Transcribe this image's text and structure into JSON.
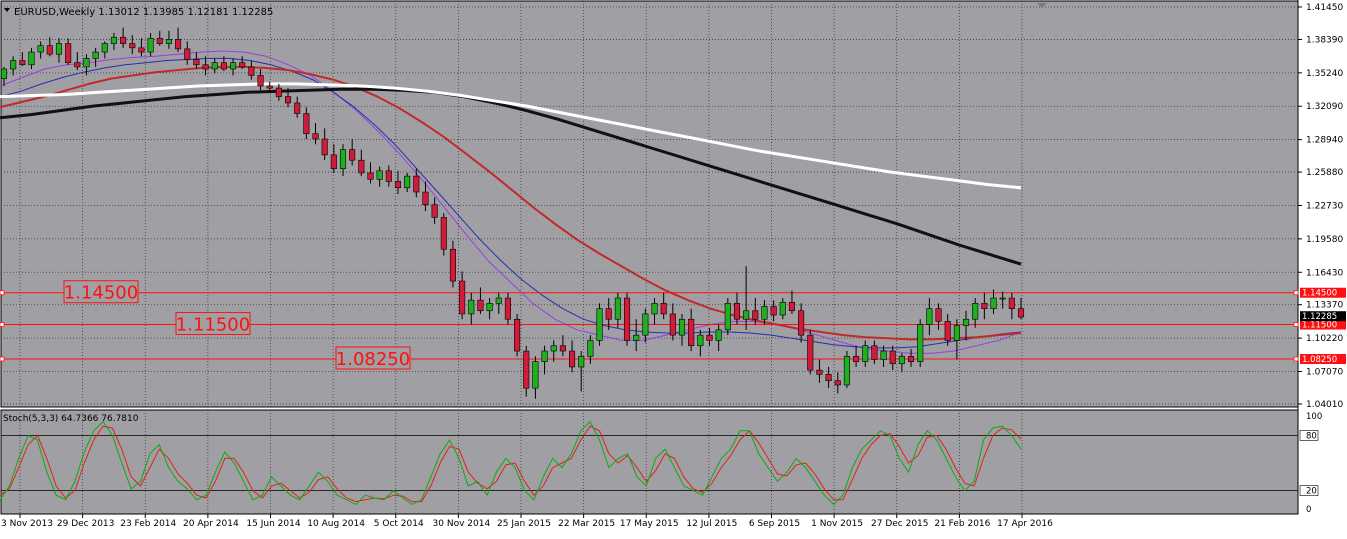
{
  "chart_data": [
    {
      "type": "candlestick",
      "symbol_info": "EURUSD,Weekly  1.13012 1.13985 1.12181 1.12285",
      "ylim": [
        1.041,
        1.4145
      ],
      "y_ticks": [
        "1.41450",
        "1.38390",
        "1.35240",
        "1.32090",
        "1.28940",
        "1.25880",
        "1.22730",
        "1.19580",
        "1.16430",
        "1.13370",
        "1.10220",
        "1.07070",
        "1.04010"
      ],
      "x_ticks": [
        "3 Nov 2013",
        "29 Dec 2013",
        "23 Feb 2014",
        "20 Apr 2014",
        "15 Jun 2014",
        "10 Aug 2014",
        "5 Oct 2014",
        "30 Nov 2014",
        "25 Jan 2015",
        "22 Mar 2015",
        "17 May 2015",
        "12 Jul 2015",
        "6 Sep 2015",
        "1 Nov 2015",
        "27 Dec 2015",
        "21 Feb 2016",
        "17 Apr 2016"
      ],
      "current_price": "1.12285",
      "levels": [
        {
          "value": 1.145,
          "label": "1.14500",
          "axis_label": "1.14500"
        },
        {
          "value": 1.115,
          "label": "1.11500",
          "axis_label": "1.11500"
        },
        {
          "value": 1.0825,
          "label": "1.08250",
          "axis_label": "1.08250"
        }
      ],
      "moving_averages": [
        {
          "color": "#9a3de0",
          "values": [
            1.34,
            1.348,
            1.356,
            1.36,
            1.362,
            1.365,
            1.367,
            1.368,
            1.37,
            1.372,
            1.373,
            1.372,
            1.368,
            1.36,
            1.35,
            1.335,
            1.318,
            1.298,
            1.276,
            1.252,
            1.226,
            1.2,
            1.175,
            1.155,
            1.135,
            1.12,
            1.11,
            1.105,
            1.1,
            1.1,
            1.105,
            1.11,
            1.115,
            1.118,
            1.118,
            1.115,
            1.11,
            1.104,
            1.098,
            1.092,
            1.09,
            1.088,
            1.088,
            1.09,
            1.095,
            1.1,
            1.108
          ]
        },
        {
          "color": "#2b2bb0",
          "values": [
            1.33,
            1.335,
            1.342,
            1.348,
            1.353,
            1.357,
            1.36,
            1.362,
            1.364,
            1.365,
            1.366,
            1.366,
            1.364,
            1.36,
            1.354,
            1.346,
            1.334,
            1.32,
            1.303,
            1.284,
            1.262,
            1.24,
            1.218,
            1.196,
            1.176,
            1.158,
            1.143,
            1.13,
            1.12,
            1.114,
            1.11,
            1.108,
            1.107,
            1.107,
            1.108,
            1.108,
            1.107,
            1.105,
            1.102,
            1.099,
            1.096,
            1.094,
            1.093,
            1.093,
            1.094,
            1.097,
            1.1,
            1.103,
            1.106,
            1.108
          ]
        },
        {
          "color": "#c22a2a",
          "values": [
            1.32,
            1.325,
            1.33,
            1.336,
            1.342,
            1.347,
            1.35,
            1.353,
            1.355,
            1.357,
            1.358,
            1.358,
            1.357,
            1.355,
            1.351,
            1.346,
            1.339,
            1.33,
            1.319,
            1.306,
            1.292,
            1.276,
            1.26,
            1.243,
            1.226,
            1.21,
            1.195,
            1.182,
            1.17,
            1.158,
            1.147,
            1.138,
            1.13,
            1.124,
            1.119,
            1.115,
            1.111,
            1.108,
            1.105,
            1.103,
            1.102,
            1.101,
            1.101,
            1.102,
            1.103,
            1.105,
            1.107
          ]
        },
        {
          "color": "#111111",
          "values": [
            1.31,
            1.313,
            1.317,
            1.321,
            1.324,
            1.327,
            1.33,
            1.332,
            1.334,
            1.335,
            1.336,
            1.337,
            1.337,
            1.336,
            1.334,
            1.33,
            1.324,
            1.317,
            1.309,
            1.3,
            1.291,
            1.282,
            1.273,
            1.264,
            1.255,
            1.246,
            1.237,
            1.228,
            1.219,
            1.21,
            1.2,
            1.19,
            1.181,
            1.172
          ]
        },
        {
          "color": "#ffffff",
          "values": [
            1.33,
            1.331,
            1.332,
            1.334,
            1.336,
            1.338,
            1.34,
            1.341,
            1.342,
            1.342,
            1.341,
            1.34,
            1.338,
            1.335,
            1.331,
            1.326,
            1.321,
            1.315,
            1.309,
            1.303,
            1.297,
            1.291,
            1.285,
            1.279,
            1.274,
            1.269,
            1.264,
            1.259,
            1.255,
            1.251,
            1.247,
            1.244
          ]
        }
      ],
      "candles": [
        [
          1.347,
          1.358,
          1.34,
          1.356
        ],
        [
          1.356,
          1.368,
          1.35,
          1.364
        ],
        [
          1.364,
          1.372,
          1.359,
          1.36
        ],
        [
          1.36,
          1.376,
          1.356,
          1.372
        ],
        [
          1.372,
          1.382,
          1.366,
          1.378
        ],
        [
          1.378,
          1.386,
          1.368,
          1.37
        ],
        [
          1.37,
          1.385,
          1.362,
          1.38
        ],
        [
          1.38,
          1.385,
          1.36,
          1.362
        ],
        [
          1.362,
          1.372,
          1.355,
          1.358
        ],
        [
          1.358,
          1.37,
          1.35,
          1.366
        ],
        [
          1.366,
          1.376,
          1.358,
          1.372
        ],
        [
          1.372,
          1.382,
          1.366,
          1.38
        ],
        [
          1.38,
          1.39,
          1.374,
          1.386
        ],
        [
          1.386,
          1.395,
          1.376,
          1.38
        ],
        [
          1.38,
          1.388,
          1.37,
          1.376
        ],
        [
          1.376,
          1.385,
          1.368,
          1.372
        ],
        [
          1.372,
          1.39,
          1.368,
          1.385
        ],
        [
          1.385,
          1.392,
          1.378,
          1.38
        ],
        [
          1.38,
          1.392,
          1.375,
          1.384
        ],
        [
          1.384,
          1.395,
          1.372,
          1.375
        ],
        [
          1.375,
          1.382,
          1.36,
          1.365
        ],
        [
          1.365,
          1.372,
          1.356,
          1.36
        ],
        [
          1.36,
          1.368,
          1.35,
          1.356
        ],
        [
          1.356,
          1.366,
          1.352,
          1.362
        ],
        [
          1.362,
          1.368,
          1.354,
          1.356
        ],
        [
          1.356,
          1.366,
          1.35,
          1.362
        ],
        [
          1.362,
          1.368,
          1.356,
          1.358
        ],
        [
          1.358,
          1.364,
          1.346,
          1.35
        ],
        [
          1.35,
          1.356,
          1.336,
          1.34
        ],
        [
          1.34,
          1.344,
          1.334,
          1.338
        ],
        [
          1.338,
          1.342,
          1.326,
          1.33
        ],
        [
          1.33,
          1.338,
          1.32,
          1.324
        ],
        [
          1.324,
          1.33,
          1.31,
          1.314
        ],
        [
          1.314,
          1.32,
          1.29,
          1.295
        ],
        [
          1.295,
          1.305,
          1.285,
          1.29
        ],
        [
          1.29,
          1.3,
          1.27,
          1.275
        ],
        [
          1.275,
          1.285,
          1.258,
          1.262
        ],
        [
          1.262,
          1.285,
          1.255,
          1.28
        ],
        [
          1.28,
          1.29,
          1.265,
          1.27
        ],
        [
          1.27,
          1.28,
          1.255,
          1.258
        ],
        [
          1.258,
          1.268,
          1.248,
          1.252
        ],
        [
          1.252,
          1.264,
          1.245,
          1.26
        ],
        [
          1.26,
          1.265,
          1.245,
          1.25
        ],
        [
          1.25,
          1.26,
          1.238,
          1.244
        ],
        [
          1.244,
          1.258,
          1.24,
          1.255
        ],
        [
          1.255,
          1.262,
          1.235,
          1.24
        ],
        [
          1.24,
          1.25,
          1.222,
          1.228
        ],
        [
          1.228,
          1.235,
          1.21,
          1.216
        ],
        [
          1.216,
          1.22,
          1.18,
          1.186
        ],
        [
          1.186,
          1.194,
          1.15,
          1.156
        ],
        [
          1.156,
          1.165,
          1.12,
          1.125
        ],
        [
          1.125,
          1.145,
          1.115,
          1.138
        ],
        [
          1.138,
          1.15,
          1.125,
          1.128
        ],
        [
          1.128,
          1.14,
          1.12,
          1.135
        ],
        [
          1.135,
          1.145,
          1.125,
          1.14
        ],
        [
          1.14,
          1.145,
          1.115,
          1.12
        ],
        [
          1.12,
          1.125,
          1.085,
          1.09
        ],
        [
          1.09,
          1.095,
          1.047,
          1.055
        ],
        [
          1.055,
          1.085,
          1.045,
          1.08
        ],
        [
          1.08,
          1.095,
          1.068,
          1.09
        ],
        [
          1.09,
          1.1,
          1.08,
          1.095
        ],
        [
          1.095,
          1.105,
          1.085,
          1.09
        ],
        [
          1.09,
          1.1,
          1.07,
          1.075
        ],
        [
          1.075,
          1.09,
          1.052,
          1.085
        ],
        [
          1.085,
          1.105,
          1.078,
          1.1
        ],
        [
          1.1,
          1.135,
          1.095,
          1.13
        ],
        [
          1.13,
          1.14,
          1.11,
          1.12
        ],
        [
          1.12,
          1.145,
          1.112,
          1.14
        ],
        [
          1.14,
          1.145,
          1.095,
          1.1
        ],
        [
          1.1,
          1.12,
          1.09,
          1.105
        ],
        [
          1.105,
          1.13,
          1.098,
          1.125
        ],
        [
          1.125,
          1.14,
          1.115,
          1.135
        ],
        [
          1.135,
          1.145,
          1.12,
          1.125
        ],
        [
          1.125,
          1.135,
          1.1,
          1.105
        ],
        [
          1.105,
          1.125,
          1.095,
          1.12
        ],
        [
          1.12,
          1.13,
          1.09,
          1.095
        ],
        [
          1.095,
          1.11,
          1.085,
          1.105
        ],
        [
          1.105,
          1.112,
          1.095,
          1.1
        ],
        [
          1.1,
          1.115,
          1.09,
          1.11
        ],
        [
          1.11,
          1.14,
          1.105,
          1.135
        ],
        [
          1.135,
          1.145,
          1.115,
          1.12
        ],
        [
          1.12,
          1.17,
          1.11,
          1.128
        ],
        [
          1.128,
          1.14,
          1.115,
          1.12
        ],
        [
          1.12,
          1.138,
          1.115,
          1.132
        ],
        [
          1.132,
          1.138,
          1.118,
          1.124
        ],
        [
          1.124,
          1.14,
          1.12,
          1.136
        ],
        [
          1.136,
          1.147,
          1.125,
          1.128
        ],
        [
          1.128,
          1.135,
          1.098,
          1.105
        ],
        [
          1.105,
          1.11,
          1.068,
          1.072
        ],
        [
          1.072,
          1.082,
          1.06,
          1.068
        ],
        [
          1.068,
          1.075,
          1.055,
          1.062
        ],
        [
          1.062,
          1.07,
          1.05,
          1.058
        ],
        [
          1.058,
          1.09,
          1.055,
          1.085
        ],
        [
          1.085,
          1.095,
          1.075,
          1.08
        ],
        [
          1.08,
          1.1,
          1.075,
          1.095
        ],
        [
          1.095,
          1.1,
          1.078,
          1.082
        ],
        [
          1.082,
          1.095,
          1.075,
          1.09
        ],
        [
          1.09,
          1.095,
          1.072,
          1.078
        ],
        [
          1.078,
          1.088,
          1.07,
          1.085
        ],
        [
          1.085,
          1.092,
          1.075,
          1.08
        ],
        [
          1.08,
          1.12,
          1.075,
          1.115
        ],
        [
          1.115,
          1.14,
          1.105,
          1.13
        ],
        [
          1.13,
          1.135,
          1.11,
          1.118
        ],
        [
          1.118,
          1.125,
          1.095,
          1.1
        ],
        [
          1.1,
          1.12,
          1.082,
          1.114
        ],
        [
          1.114,
          1.128,
          1.1,
          1.12
        ],
        [
          1.12,
          1.14,
          1.112,
          1.135
        ],
        [
          1.135,
          1.145,
          1.12,
          1.13
        ],
        [
          1.13,
          1.148,
          1.125,
          1.14
        ],
        [
          1.14,
          1.146,
          1.13,
          1.14
        ],
        [
          1.14,
          1.145,
          1.12,
          1.13
        ],
        [
          1.13,
          1.14,
          1.12,
          1.122
        ]
      ],
      "stochastic": {
        "label": "Stoch(5,3,3) 64.7366 76.7810",
        "levels_text": [
          "100",
          "80",
          "20",
          "0"
        ],
        "k_color": "#11a811",
        "d_color": "#e02020",
        "k": [
          10,
          25,
          55,
          80,
          75,
          40,
          15,
          10,
          30,
          62,
          85,
          95,
          80,
          50,
          22,
          30,
          60,
          70,
          45,
          30,
          22,
          10,
          15,
          40,
          62,
          50,
          30,
          10,
          15,
          35,
          25,
          15,
          10,
          25,
          40,
          30,
          15,
          10,
          5,
          15,
          12,
          10,
          20,
          12,
          5,
          10,
          35,
          60,
          75,
          55,
          25,
          30,
          15,
          40,
          55,
          45,
          20,
          10,
          35,
          55,
          45,
          60,
          85,
          95,
          75,
          45,
          55,
          60,
          35,
          25,
          55,
          65,
          45,
          25,
          20,
          15,
          35,
          55,
          65,
          85,
          85,
          60,
          45,
          30,
          40,
          55,
          45,
          30,
          15,
          5,
          15,
          45,
          65,
          75,
          85,
          80,
          55,
          40,
          70,
          85,
          75,
          55,
          35,
          20,
          30,
          75,
          88,
          90,
          80,
          65
        ],
        "d": [
          15,
          22,
          45,
          70,
          80,
          55,
          25,
          12,
          20,
          50,
          75,
          90,
          88,
          65,
          35,
          25,
          45,
          65,
          55,
          38,
          28,
          15,
          12,
          30,
          55,
          55,
          40,
          20,
          12,
          25,
          28,
          20,
          12,
          18,
          32,
          35,
          22,
          12,
          8,
          10,
          12,
          11,
          15,
          14,
          8,
          8,
          25,
          50,
          68,
          65,
          40,
          28,
          22,
          30,
          48,
          50,
          30,
          15,
          25,
          45,
          50,
          55,
          75,
          90,
          85,
          60,
          50,
          58,
          45,
          30,
          42,
          60,
          55,
          35,
          22,
          18,
          28,
          45,
          58,
          75,
          85,
          72,
          55,
          38,
          36,
          48,
          50,
          38,
          22,
          10,
          10,
          32,
          55,
          70,
          80,
          82,
          68,
          50,
          58,
          78,
          80,
          65,
          45,
          28,
          25,
          55,
          80,
          88,
          86,
          76
        ]
      }
    }
  ]
}
